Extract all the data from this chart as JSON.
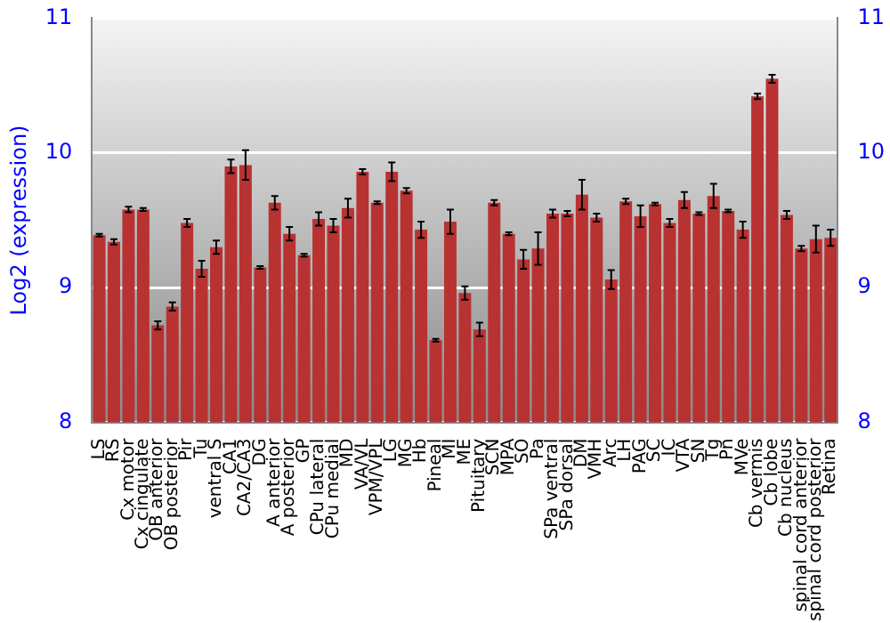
{
  "chart_data": {
    "type": "bar",
    "ylabel": "Log2 (expression)",
    "categories": [
      "LS",
      "RS",
      "Cx motor",
      "Cx cingulate",
      "OB anterior",
      "OB posterior",
      "Pir",
      "Tu",
      "ventral S",
      "CA1",
      "CA2/CA3",
      "DG",
      "A anterior",
      "A posterior",
      "GP",
      "CPu lateral",
      "CPu medial",
      "MD",
      "VA/VL",
      "VPM/VPL",
      "LG",
      "MG",
      "Hb",
      "Pineal",
      "MI",
      "ME",
      "Pituitary",
      "SCN",
      "MPA",
      "SO",
      "Pa",
      "SPa ventral",
      "SPa dorsal",
      "DM",
      "VMH",
      "Arc",
      "LH",
      "PAG",
      "SC",
      "IC",
      "VTA",
      "SN",
      "Tg",
      "Pn",
      "MVe",
      "Cb vermis",
      "Cb lobe",
      "Cb nucleus",
      "spinal cord anterior",
      "spinal cord posterior",
      "Retina"
    ],
    "values": [
      9.39,
      9.34,
      9.58,
      9.58,
      8.72,
      8.86,
      9.48,
      9.14,
      9.3,
      9.9,
      9.91,
      9.15,
      9.63,
      9.4,
      9.24,
      9.51,
      9.46,
      9.59,
      9.86,
      9.63,
      9.86,
      9.72,
      9.43,
      8.61,
      9.49,
      8.96,
      8.69,
      9.63,
      9.4,
      9.21,
      9.29,
      9.55,
      9.55,
      9.69,
      9.52,
      9.06,
      9.64,
      9.53,
      9.62,
      9.48,
      9.65,
      9.55,
      9.68,
      9.57,
      9.43,
      10.42,
      10.55,
      9.54,
      9.29,
      9.36,
      9.37
    ],
    "errors": [
      0.01,
      0.02,
      0.02,
      0.01,
      0.03,
      0.03,
      0.03,
      0.06,
      0.05,
      0.05,
      0.11,
      0.01,
      0.05,
      0.05,
      0.01,
      0.05,
      0.05,
      0.07,
      0.02,
      0.01,
      0.07,
      0.02,
      0.06,
      0.01,
      0.09,
      0.05,
      0.05,
      0.02,
      0.01,
      0.07,
      0.12,
      0.03,
      0.02,
      0.11,
      0.03,
      0.07,
      0.02,
      0.08,
      0.01,
      0.03,
      0.06,
      0.01,
      0.09,
      0.01,
      0.06,
      0.02,
      0.03,
      0.03,
      0.02,
      0.1,
      0.06
    ],
    "color": "#b83232",
    "ylim": [
      8,
      11
    ],
    "yticks": [
      8,
      9,
      10,
      11
    ],
    "y2lim": [
      8,
      11
    ],
    "y2ticks": [
      8,
      9,
      10,
      11
    ],
    "grid": "y"
  }
}
